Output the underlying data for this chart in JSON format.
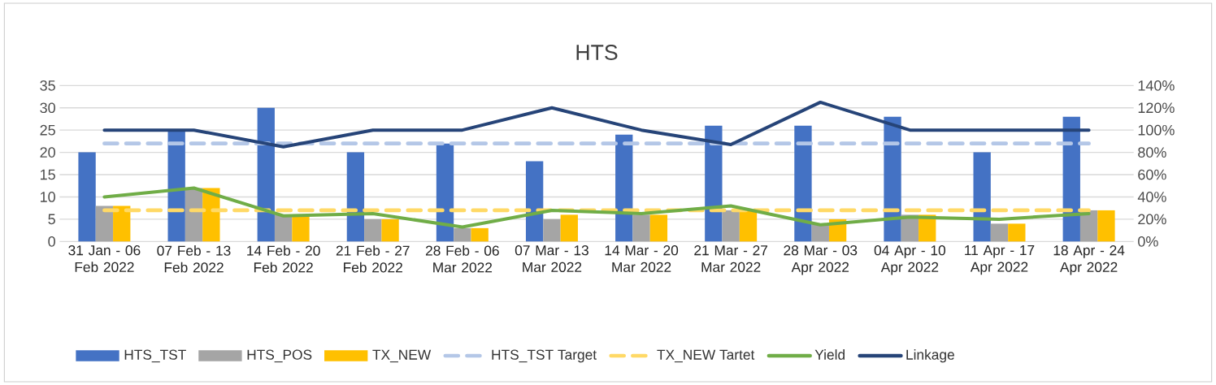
{
  "chart_data": {
    "type": "bar",
    "title": "HTS",
    "categories": [
      "31 Jan - 06 Feb 2022",
      "07 Feb - 13 Feb 2022",
      "14 Feb - 20 Feb 2022",
      "21 Feb - 27 Feb 2022",
      "28 Feb - 06 Mar 2022",
      "07 Mar - 13 Mar 2022",
      "14 Mar - 20 Mar 2022",
      "21 Mar - 27 Mar 2022",
      "28 Mar - 03 Apr 2022",
      "04 Apr - 10 Apr 2022",
      "11 Apr - 17 Apr 2022",
      "18 Apr - 24 Apr 2022"
    ],
    "series": [
      {
        "name": "HTS_TST",
        "type": "bar",
        "color": "#4472c4",
        "values": [
          20,
          25,
          30,
          20,
          22,
          18,
          24,
          26,
          26,
          28,
          20,
          28
        ]
      },
      {
        "name": "HTS_POS",
        "type": "bar",
        "color": "#a5a5a5",
        "values": [
          8,
          12,
          6,
          5,
          3,
          5,
          6,
          7,
          4,
          6,
          4,
          7
        ]
      },
      {
        "name": "TX_NEW",
        "type": "bar",
        "color": "#ffc000",
        "values": [
          8,
          12,
          6,
          5,
          3,
          6,
          6,
          7,
          5,
          6,
          4,
          7
        ]
      },
      {
        "name": "HTS_TST Target",
        "type": "line",
        "line_style": "dashed",
        "color": "#b4c7e7",
        "values": [
          22,
          22,
          22,
          22,
          22,
          22,
          22,
          22,
          22,
          22,
          22,
          22
        ]
      },
      {
        "name": "TX_NEW Tartet",
        "type": "line",
        "line_style": "dashed",
        "color": "#ffd966",
        "values": [
          7,
          7,
          7,
          7,
          7,
          7,
          7,
          7,
          7,
          7,
          7,
          7
        ]
      },
      {
        "name": "Yield",
        "type": "line",
        "axis": "y2",
        "line_style": "solid",
        "color": "#70ad47",
        "values": [
          40,
          48,
          23,
          25,
          13,
          28,
          25,
          32,
          15,
          22,
          20,
          25
        ]
      },
      {
        "name": "Linkage",
        "type": "line",
        "axis": "y2",
        "line_style": "solid",
        "color": "#264478",
        "values": [
          100,
          100,
          85,
          100,
          100,
          120,
          100,
          87,
          125,
          100,
          100,
          100
        ]
      }
    ],
    "ylim": [
      0,
      35
    ],
    "yticks": [
      0,
      5,
      10,
      15,
      20,
      25,
      30,
      35
    ],
    "y2lim": [
      0,
      140
    ],
    "y2ticks": [
      {
        "value": 0,
        "label": "0%"
      },
      {
        "value": 20,
        "label": "20%"
      },
      {
        "value": 40,
        "label": "40%"
      },
      {
        "value": 60,
        "label": "60%"
      },
      {
        "value": 80,
        "label": "80%"
      },
      {
        "value": 100,
        "label": "100%"
      },
      {
        "value": 120,
        "label": "120%"
      },
      {
        "value": 140,
        "label": "140%"
      }
    ],
    "grid": "y",
    "legend": "bottom"
  }
}
